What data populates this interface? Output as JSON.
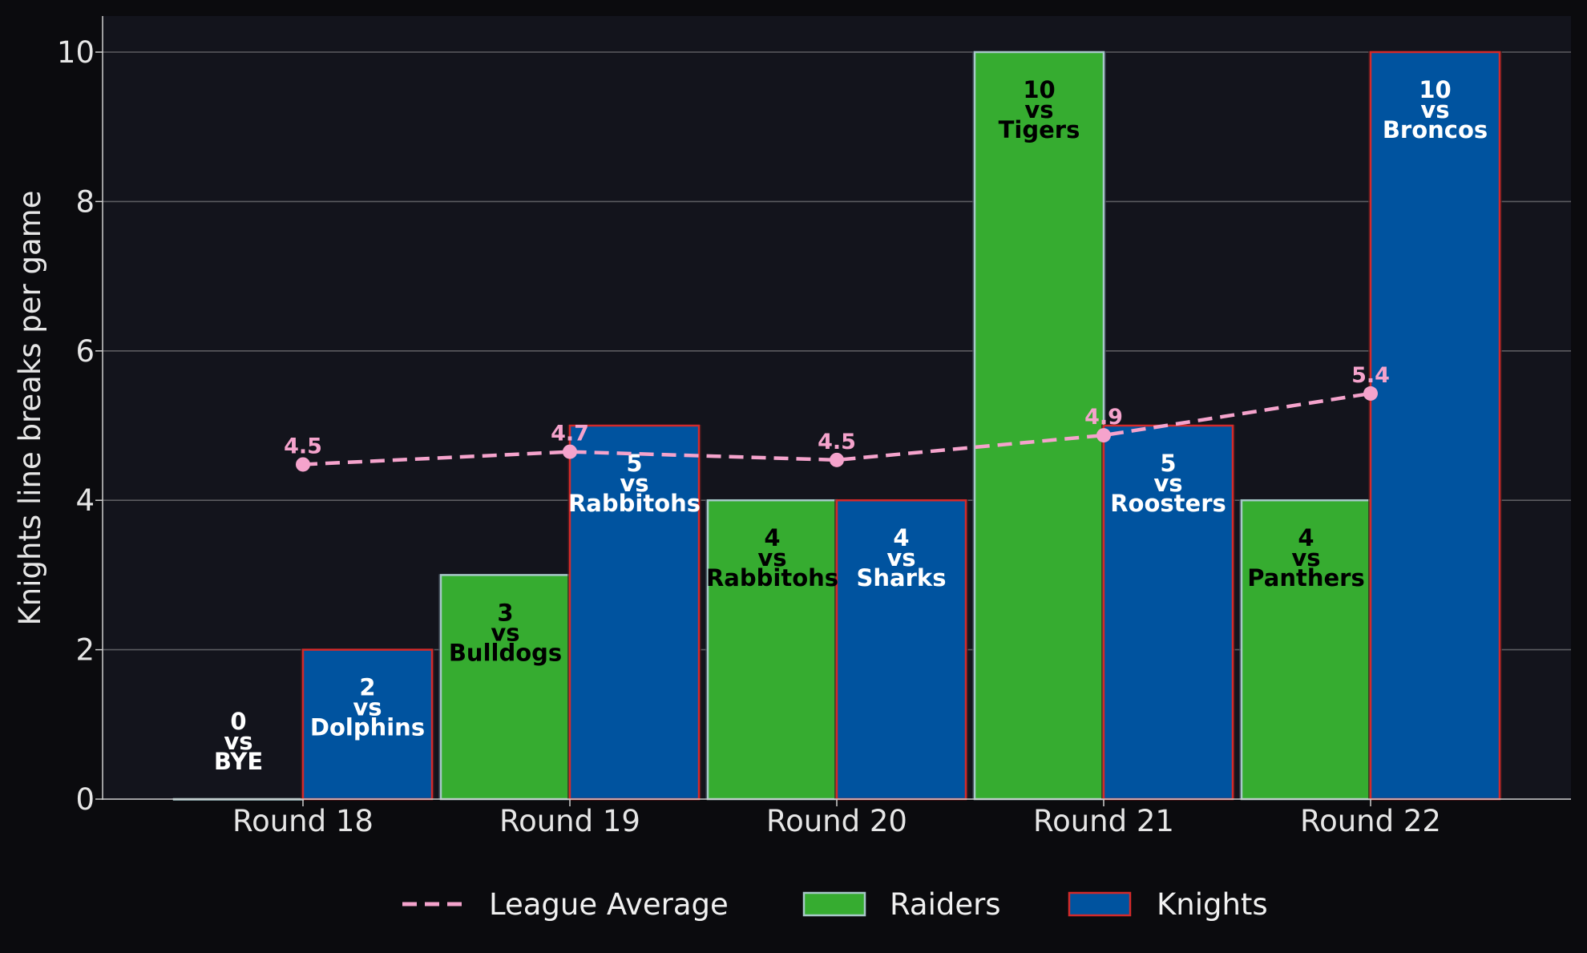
{
  "chart_data": {
    "type": "bar",
    "categories": [
      "Round 18",
      "Round 19",
      "Round 20",
      "Round 21",
      "Round 22"
    ],
    "series": [
      {
        "name": "Raiders",
        "values": [
          0,
          3,
          4,
          10,
          4
        ],
        "opponents": [
          "BYE",
          "Bulldogs",
          "Rabbitohs",
          "Tigers",
          "Panthers"
        ],
        "color": "#36ac30",
        "edge_color": "#a7c8c8",
        "label_color": "#000000"
      },
      {
        "name": "Knights",
        "values": [
          2,
          5,
          4,
          5,
          10
        ],
        "opponents": [
          "Dolphins",
          "Rabbitohs",
          "Sharks",
          "Roosters",
          "Broncos"
        ],
        "color": "#00539f",
        "edge_color": "#d42a2a",
        "label_color": "#ffffff"
      }
    ],
    "line_series": {
      "name": "League Average",
      "values": [
        4.48,
        4.65,
        4.54,
        4.87,
        5.43
      ],
      "labels": [
        "4.5",
        "4.7",
        "4.5",
        "4.9",
        "5.4"
      ],
      "color": "#f5a3cc",
      "style": "dashed"
    },
    "vs_word": "vs",
    "xlabel": "",
    "ylabel": "Knights line breaks per game",
    "ylim": [
      0,
      10.5
    ],
    "yticks": [
      0,
      2,
      4,
      6,
      8,
      10
    ],
    "grid": "horizontal",
    "legend_position": "bottom",
    "legend_order": [
      "League Average",
      "Raiders",
      "Knights"
    ],
    "colors": {
      "background": "#0b0b0e",
      "plot_background": "#13141c",
      "grid": "#5c5c60",
      "text": "#e6e6e6"
    }
  }
}
